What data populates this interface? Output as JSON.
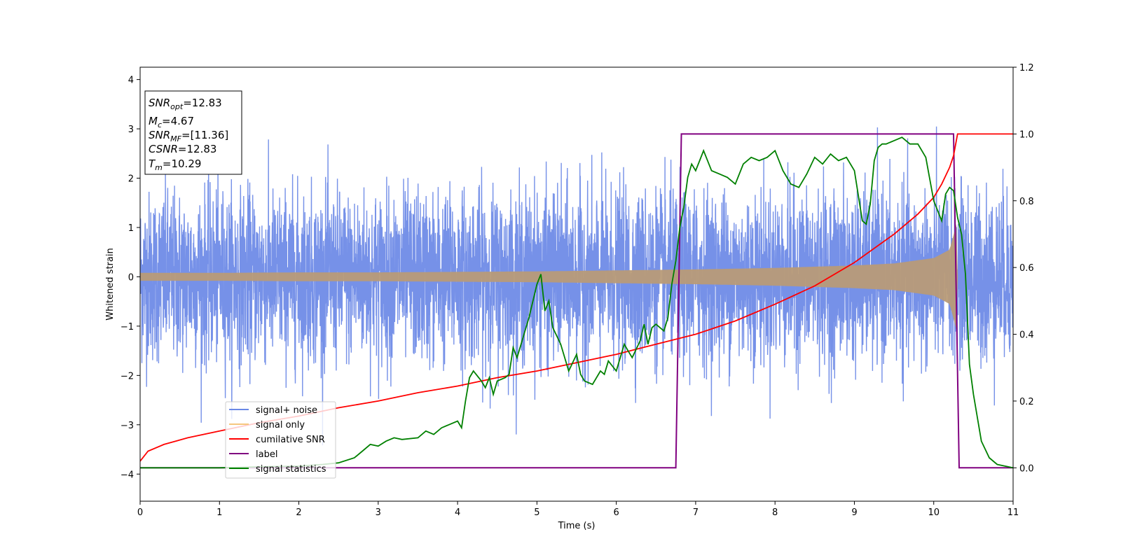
{
  "chart_data": {
    "type": "line",
    "xlabel": "Time (s)",
    "ylabel": "Whitened strain",
    "xlim": [
      0,
      11
    ],
    "ylim_left": [
      -4.55,
      4.25
    ],
    "ylim_right": [
      -0.1,
      1.2
    ],
    "x_ticks": [
      "0",
      "1",
      "2",
      "3",
      "4",
      "5",
      "6",
      "7",
      "8",
      "9",
      "10",
      "11"
    ],
    "y_ticks_left": [
      "−4",
      "−3",
      "−2",
      "−1",
      "0",
      "1",
      "2",
      "3",
      "4"
    ],
    "y_ticks_right": [
      "0.0",
      "0.2",
      "0.4",
      "0.6",
      "0.8",
      "1.0",
      "1.2"
    ],
    "grid": false,
    "legend_placement": "lower-left",
    "colors": {
      "signal_noise": "#6a88e6",
      "signal_only": "#f5c77e",
      "signal_only_overlap": "#b89b78",
      "cumulative_snr": "#ff0000",
      "label": "#800080",
      "signal_statistics": "#008000"
    },
    "info_box": {
      "snr_opt": "=12.83",
      "mc": "=4.67",
      "snr_mf": "=[11.36]",
      "csnr": "=12.83",
      "tm": "=10.29"
    },
    "series": [
      {
        "name": "signal+ noise",
        "axis": "left",
        "description_values": {
          "envelope_min": -4.1,
          "envelope_max": 3.9,
          "typical_band": [
            -1.6,
            1.9
          ]
        }
      },
      {
        "name": "signal only",
        "axis": "left",
        "envelope": {
          "x": [
            0,
            1,
            2,
            3,
            4,
            5,
            6,
            7,
            8,
            9,
            9.5,
            10,
            10.2,
            10.29,
            10.3,
            11
          ],
          "amp": [
            0.08,
            0.08,
            0.09,
            0.09,
            0.1,
            0.11,
            0.13,
            0.15,
            0.18,
            0.23,
            0.27,
            0.38,
            0.55,
            1.1,
            0.0,
            0.0
          ]
        }
      },
      {
        "name": "cumilative SNR",
        "axis": "right",
        "x": [
          0,
          0.1,
          0.3,
          0.6,
          1,
          1.5,
          2,
          2.5,
          3,
          3.5,
          4,
          4.5,
          5,
          5.5,
          6,
          6.5,
          7,
          7.5,
          8,
          8.5,
          9,
          9.5,
          9.8,
          10,
          10.1,
          10.2,
          10.25,
          10.3,
          11
        ],
        "y": [
          0.02,
          0.05,
          0.07,
          0.09,
          0.11,
          0.135,
          0.155,
          0.18,
          0.2,
          0.225,
          0.245,
          0.27,
          0.29,
          0.315,
          0.34,
          0.37,
          0.4,
          0.44,
          0.49,
          0.545,
          0.615,
          0.7,
          0.76,
          0.81,
          0.85,
          0.9,
          0.935,
          1.0,
          1.0
        ]
      },
      {
        "name": "label",
        "axis": "right",
        "x": [
          0,
          6.75,
          6.82,
          10.25,
          10.32,
          11
        ],
        "y": [
          0,
          0,
          1,
          1,
          0,
          0
        ]
      },
      {
        "name": "signal statistics",
        "axis": "right",
        "x": [
          0,
          0.5,
          1,
          1.5,
          2,
          2.3,
          2.5,
          2.7,
          2.8,
          2.9,
          3.0,
          3.1,
          3.2,
          3.3,
          3.5,
          3.6,
          3.7,
          3.8,
          3.9,
          4.0,
          4.05,
          4.1,
          4.15,
          4.2,
          4.3,
          4.35,
          4.4,
          4.45,
          4.5,
          4.6,
          4.65,
          4.7,
          4.75,
          4.8,
          4.9,
          5.0,
          5.05,
          5.1,
          5.15,
          5.2,
          5.3,
          5.4,
          5.5,
          5.55,
          5.6,
          5.7,
          5.8,
          5.85,
          5.9,
          6.0,
          6.1,
          6.15,
          6.2,
          6.3,
          6.35,
          6.4,
          6.45,
          6.5,
          6.6,
          6.65,
          6.7,
          6.75,
          6.8,
          6.85,
          6.9,
          6.95,
          7.0,
          7.05,
          7.1,
          7.2,
          7.3,
          7.4,
          7.5,
          7.6,
          7.7,
          7.8,
          7.9,
          8.0,
          8.1,
          8.2,
          8.3,
          8.4,
          8.5,
          8.6,
          8.7,
          8.8,
          8.9,
          9.0,
          9.1,
          9.15,
          9.2,
          9.25,
          9.3,
          9.35,
          9.4,
          9.5,
          9.6,
          9.7,
          9.8,
          9.9,
          10.0,
          10.05,
          10.1,
          10.15,
          10.2,
          10.25,
          10.3,
          10.35,
          10.4,
          10.45,
          10.5,
          10.6,
          10.7,
          10.8,
          11
        ],
        "y": [
          0.0,
          0.0,
          0.0,
          0.003,
          0.005,
          0.01,
          0.015,
          0.03,
          0.05,
          0.07,
          0.065,
          0.08,
          0.09,
          0.085,
          0.09,
          0.11,
          0.1,
          0.12,
          0.13,
          0.14,
          0.12,
          0.2,
          0.27,
          0.29,
          0.26,
          0.24,
          0.27,
          0.22,
          0.26,
          0.27,
          0.28,
          0.36,
          0.33,
          0.37,
          0.45,
          0.55,
          0.58,
          0.47,
          0.5,
          0.42,
          0.37,
          0.29,
          0.34,
          0.28,
          0.26,
          0.25,
          0.29,
          0.28,
          0.32,
          0.29,
          0.37,
          0.35,
          0.33,
          0.38,
          0.43,
          0.37,
          0.42,
          0.43,
          0.41,
          0.45,
          0.55,
          0.62,
          0.72,
          0.78,
          0.87,
          0.91,
          0.89,
          0.92,
          0.95,
          0.89,
          0.88,
          0.87,
          0.85,
          0.91,
          0.93,
          0.92,
          0.93,
          0.95,
          0.89,
          0.85,
          0.84,
          0.88,
          0.93,
          0.91,
          0.94,
          0.92,
          0.93,
          0.89,
          0.74,
          0.73,
          0.79,
          0.92,
          0.96,
          0.97,
          0.97,
          0.98,
          0.99,
          0.97,
          0.97,
          0.93,
          0.8,
          0.77,
          0.74,
          0.82,
          0.84,
          0.83,
          0.75,
          0.7,
          0.58,
          0.31,
          0.22,
          0.08,
          0.03,
          0.01,
          0.0
        ]
      }
    ]
  }
}
